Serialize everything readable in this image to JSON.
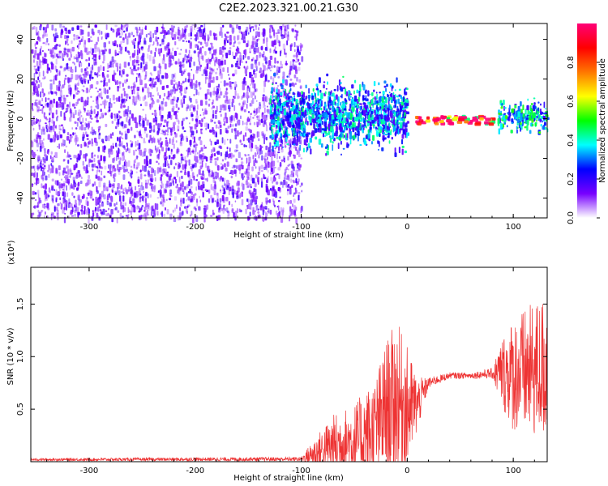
{
  "title": "C2E2.2023.321.00.21.G30",
  "chart_data": [
    {
      "type": "heatmap",
      "name": "spectrogram",
      "xlabel": "Height of straight line (km)",
      "ylabel": "Frequency (Hz)",
      "xlim": [
        -355,
        132
      ],
      "ylim": [
        -50,
        48
      ],
      "x_ticks": [
        -300,
        -200,
        -100,
        0,
        100
      ],
      "x_tick_labels": [
        "-300",
        "-200",
        "-100",
        "0",
        "100"
      ],
      "y_ticks": [
        -40,
        -20,
        0,
        20,
        40
      ],
      "y_tick_labels": [
        "-40",
        "-20",
        "0",
        "20",
        "40"
      ],
      "colorbar": {
        "label": "Normalized spectral amplitude",
        "range": [
          0.0,
          1.0
        ],
        "ticks": [
          0.0,
          0.2,
          0.4,
          0.6,
          0.8
        ],
        "tick_labels": [
          "0.0",
          "0.2",
          "0.4",
          "0.6",
          "0.8"
        ],
        "colormap": [
          "#ffffff",
          "#7700ff",
          "#0000ff",
          "#00ffff",
          "#00ff00",
          "#ffff00",
          "#ff7700",
          "#ff0000",
          "#ff0077"
        ]
      },
      "regions": [
        {
          "x": [
            -355,
            -100
          ],
          "y": [
            -50,
            48
          ],
          "level": 0.12,
          "description": "broadband noise"
        },
        {
          "x": [
            -130,
            0
          ],
          "y": [
            -20,
            25
          ],
          "level": 0.3
        },
        {
          "x": [
            0,
            80
          ],
          "y": [
            -2,
            2
          ],
          "level": 0.9
        },
        {
          "x": [
            85,
            132
          ],
          "y": [
            -8,
            12
          ],
          "level": 0.35
        }
      ]
    },
    {
      "type": "line",
      "name": "snr",
      "xlabel": "Height of straight line (km)",
      "ylabel": "SNR (10 * v/v)",
      "y_multiplier": "(x10⁴)",
      "xlim": [
        -355,
        132
      ],
      "ylim": [
        0,
        18500
      ],
      "x_ticks": [
        -300,
        -200,
        -100,
        0,
        100
      ],
      "x_tick_labels": [
        "-300",
        "-200",
        "-100",
        "0",
        "100"
      ],
      "y_ticks": [
        5000,
        10000,
        15000
      ],
      "y_tick_labels": [
        "0.5",
        "1.0",
        "1.5"
      ],
      "color": "#ee3333",
      "envelope": {
        "x": [
          -355,
          -100,
          -90,
          -70,
          -50,
          -30,
          -20,
          -10,
          0,
          10,
          20,
          40,
          60,
          80,
          90,
          100,
          110,
          120,
          132
        ],
        "base": [
          200,
          250,
          700,
          1500,
          2000,
          3000,
          5000,
          6000,
          5000,
          5500,
          7500,
          8200,
          8200,
          8400,
          8500,
          8300,
          8500,
          8700,
          9000
        ],
        "amp": [
          120,
          200,
          1200,
          3000,
          3500,
          5000,
          6500,
          7500,
          6000,
          2500,
          500,
          300,
          300,
          500,
          3500,
          5500,
          6000,
          6500,
          7000
        ]
      }
    }
  ]
}
